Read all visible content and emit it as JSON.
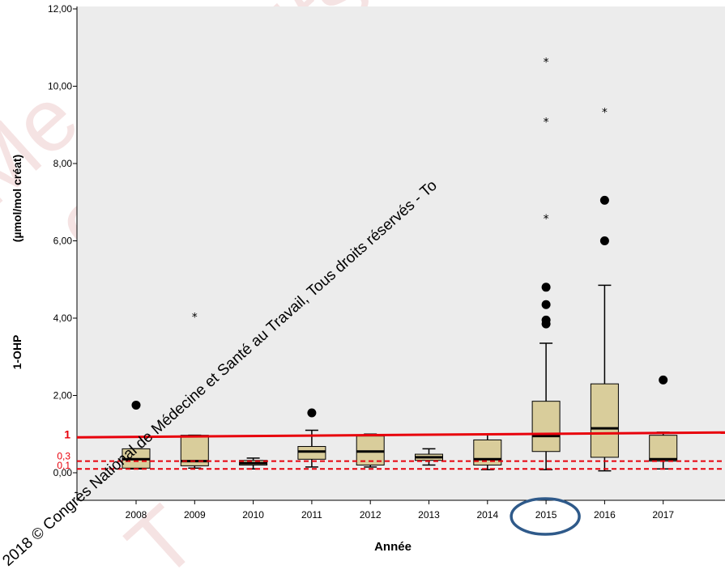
{
  "chart_data": {
    "type": "box",
    "xlabel": "Année",
    "ylabel_left": "1-OHP",
    "ylabel_right": "(µmol/mol créat)",
    "ylim": [
      0,
      12.4
    ],
    "yticks": [
      "0,00",
      "2,00",
      "4,00",
      "6,00",
      "8,00",
      "10,00",
      "12,00"
    ],
    "categories": [
      "2008",
      "2009",
      "2010",
      "2011",
      "2012",
      "2013",
      "2014",
      "2015",
      "2016",
      "2017"
    ],
    "boxes": [
      {
        "min": 0.1,
        "q1": 0.12,
        "median": 0.35,
        "q3": 0.62,
        "max": 0.62,
        "outliers": [
          1.75
        ],
        "extremes": []
      },
      {
        "min": 0.12,
        "q1": 0.18,
        "median": 0.3,
        "q3": 0.97,
        "max": 0.97,
        "outliers": [],
        "extremes": [
          4.05
        ]
      },
      {
        "min": 0.1,
        "q1": 0.2,
        "median": 0.25,
        "q3": 0.32,
        "max": 0.38,
        "outliers": [],
        "extremes": []
      },
      {
        "min": 0.15,
        "q1": 0.35,
        "median": 0.55,
        "q3": 0.68,
        "max": 1.1,
        "outliers": [
          1.55
        ],
        "extremes": []
      },
      {
        "min": 0.15,
        "q1": 0.2,
        "median": 0.55,
        "q3": 0.95,
        "max": 1.0,
        "outliers": [],
        "extremes": []
      },
      {
        "min": 0.2,
        "q1": 0.32,
        "median": 0.4,
        "q3": 0.48,
        "max": 0.62,
        "outliers": [],
        "extremes": []
      },
      {
        "min": 0.08,
        "q1": 0.2,
        "median": 0.35,
        "q3": 0.85,
        "max": 1.0,
        "outliers": [],
        "extremes": []
      },
      {
        "min": 0.08,
        "q1": 0.55,
        "median": 0.95,
        "q3": 1.85,
        "max": 3.35,
        "outliers": [
          3.85,
          3.95,
          4.35,
          4.8
        ],
        "extremes": [
          6.6,
          9.1,
          10.65
        ]
      },
      {
        "min": 0.05,
        "q1": 0.4,
        "median": 1.15,
        "q3": 2.3,
        "max": 4.85,
        "outliers": [
          6.0,
          7.05
        ],
        "extremes": [
          9.35
        ]
      },
      {
        "min": 0.1,
        "q1": 0.3,
        "median": 0.35,
        "q3": 0.97,
        "max": 1.05,
        "outliers": [
          2.4
        ],
        "extremes": []
      }
    ],
    "reference_lines": [
      {
        "value": 1,
        "label": "1",
        "style": "solid",
        "color": "#e8000b"
      },
      {
        "value": 0.3,
        "label": "0,3",
        "style": "dashed",
        "color": "#e8000b"
      },
      {
        "value": 0.1,
        "label": "0,1",
        "style": "dashed",
        "color": "#e8000b"
      }
    ],
    "highlight": {
      "category": "2015",
      "shape": "ellipse",
      "color": "#2f5a8a"
    },
    "colors": {
      "box_fill": "#d9cd9b",
      "plot_bg": "#ececec",
      "ref": "#e8000b"
    },
    "grid": false
  },
  "watermark": {
    "line": "2018 © Congrès National de Médecine et Santé au Travail, Tous droits réservés - To",
    "words": [
      "Me",
      "ous droits",
      "Toute repr",
      "repr",
      "con",
      "T"
    ]
  }
}
